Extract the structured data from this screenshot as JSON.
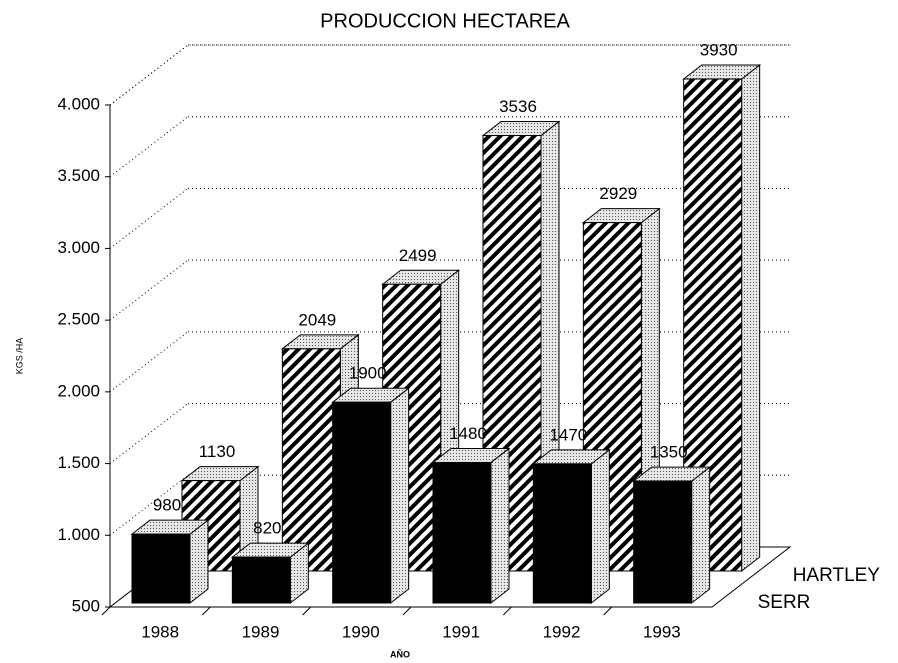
{
  "chart_data": {
    "type": "bar3d",
    "title": "PRODUCCION HECTAREA",
    "y_label": "KGS /HA",
    "x_label": "AÑO",
    "categories": [
      "1988",
      "1989",
      "1990",
      "1991",
      "1992",
      "1993"
    ],
    "series": [
      {
        "name": "SERR",
        "color": "#000000",
        "pattern": "solid",
        "values": [
          980,
          820,
          1900,
          1480,
          1470,
          1350
        ]
      },
      {
        "name": "HARTLEY",
        "color": "#000000",
        "pattern": "hatch",
        "values": [
          1130,
          2049,
          2499,
          3536,
          2929,
          3930
        ]
      }
    ],
    "ylim": [
      500,
      4000
    ],
    "yticks": [
      500,
      {
        "value": 1000,
        "label": "1.000"
      },
      {
        "value": 1500,
        "label": "1.500"
      },
      {
        "value": 2000,
        "label": "2.000"
      },
      {
        "value": 2500,
        "label": "2.500"
      },
      {
        "value": 3000,
        "label": "3.000"
      },
      {
        "value": 3500,
        "label": "3.500"
      },
      {
        "value": 4000,
        "label": "4.000"
      }
    ],
    "grid": true
  }
}
